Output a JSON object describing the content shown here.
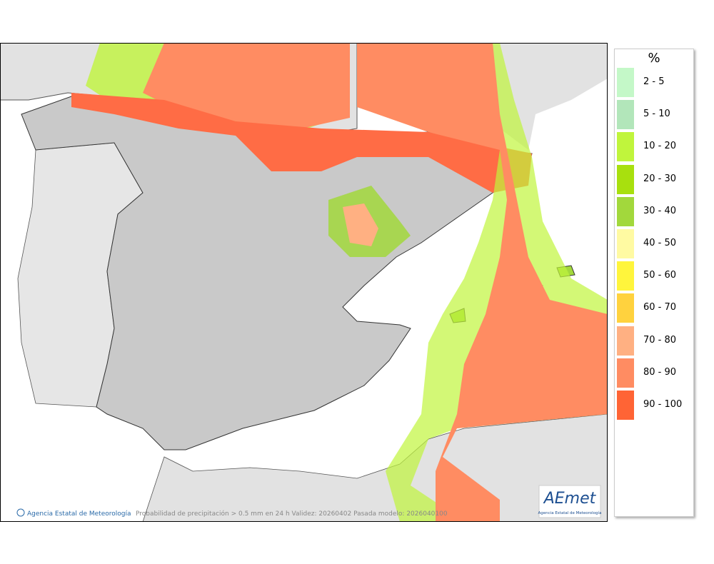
{
  "legend": {
    "title": "%",
    "items": [
      {
        "label": "2 - 5",
        "color": "#c4f8c8"
      },
      {
        "label": "5 - 10",
        "color": "#b2e6ba"
      },
      {
        "label": "10 - 20",
        "color": "#c0f53c"
      },
      {
        "label": "20 - 30",
        "color": "#a8e00e"
      },
      {
        "label": "30 - 40",
        "color": "#a2d83c"
      },
      {
        "label": "40 - 50",
        "color": "#fffaa2"
      },
      {
        "label": "50 - 60",
        "color": "#fff53c"
      },
      {
        "label": "60 - 70",
        "color": "#ffd23e"
      },
      {
        "label": "70 - 80",
        "color": "#ffb082"
      },
      {
        "label": "80 - 90",
        "color": "#ff8c62"
      },
      {
        "label": "90 - 100",
        "color": "#ff6435"
      }
    ]
  },
  "footer": {
    "credit": "Agencia Estatal de Meteorología",
    "caption": "Probabilidad de precipitación > 0.5 mm en 24 h Validez: 20260402 Pasada modelo: 2026040100"
  },
  "logo": {
    "text": "AEmet",
    "subtitle": "Agencia Estatal de Meteorología"
  }
}
